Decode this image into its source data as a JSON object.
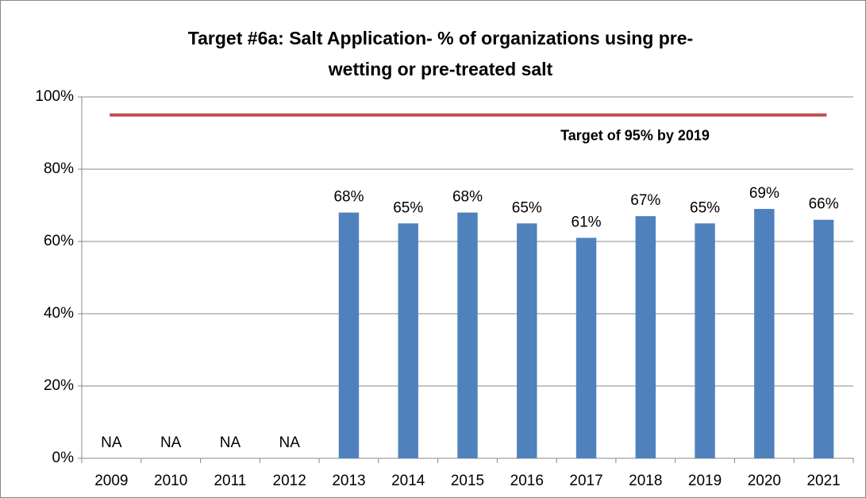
{
  "chart_data": {
    "type": "bar",
    "title": [
      "Target #6a: Salt Application- % of organizations using pre-",
      "wetting or pre-treated salt"
    ],
    "categories": [
      "2009",
      "2010",
      "2011",
      "2012",
      "2013",
      "2014",
      "2015",
      "2016",
      "2017",
      "2018",
      "2019",
      "2020",
      "2021"
    ],
    "values": [
      null,
      null,
      null,
      null,
      68,
      65,
      68,
      65,
      61,
      67,
      65,
      69,
      66
    ],
    "value_labels": [
      "NA",
      "NA",
      "NA",
      "NA",
      "68%",
      "65%",
      "68%",
      "65%",
      "61%",
      "67%",
      "65%",
      "69%",
      "66%"
    ],
    "color": "#4f81bd",
    "target": {
      "value": 95,
      "label": "Target of 95% by 2019",
      "color": "#c0504d"
    },
    "ylim": [
      0,
      100
    ],
    "yticks": [
      {
        "value": 0,
        "label": "0%"
      },
      {
        "value": 20,
        "label": "20%"
      },
      {
        "value": 40,
        "label": "40%"
      },
      {
        "value": 60,
        "label": "60%"
      },
      {
        "value": 80,
        "label": "80%"
      },
      {
        "value": 100,
        "label": "100%"
      }
    ],
    "grid": true
  }
}
